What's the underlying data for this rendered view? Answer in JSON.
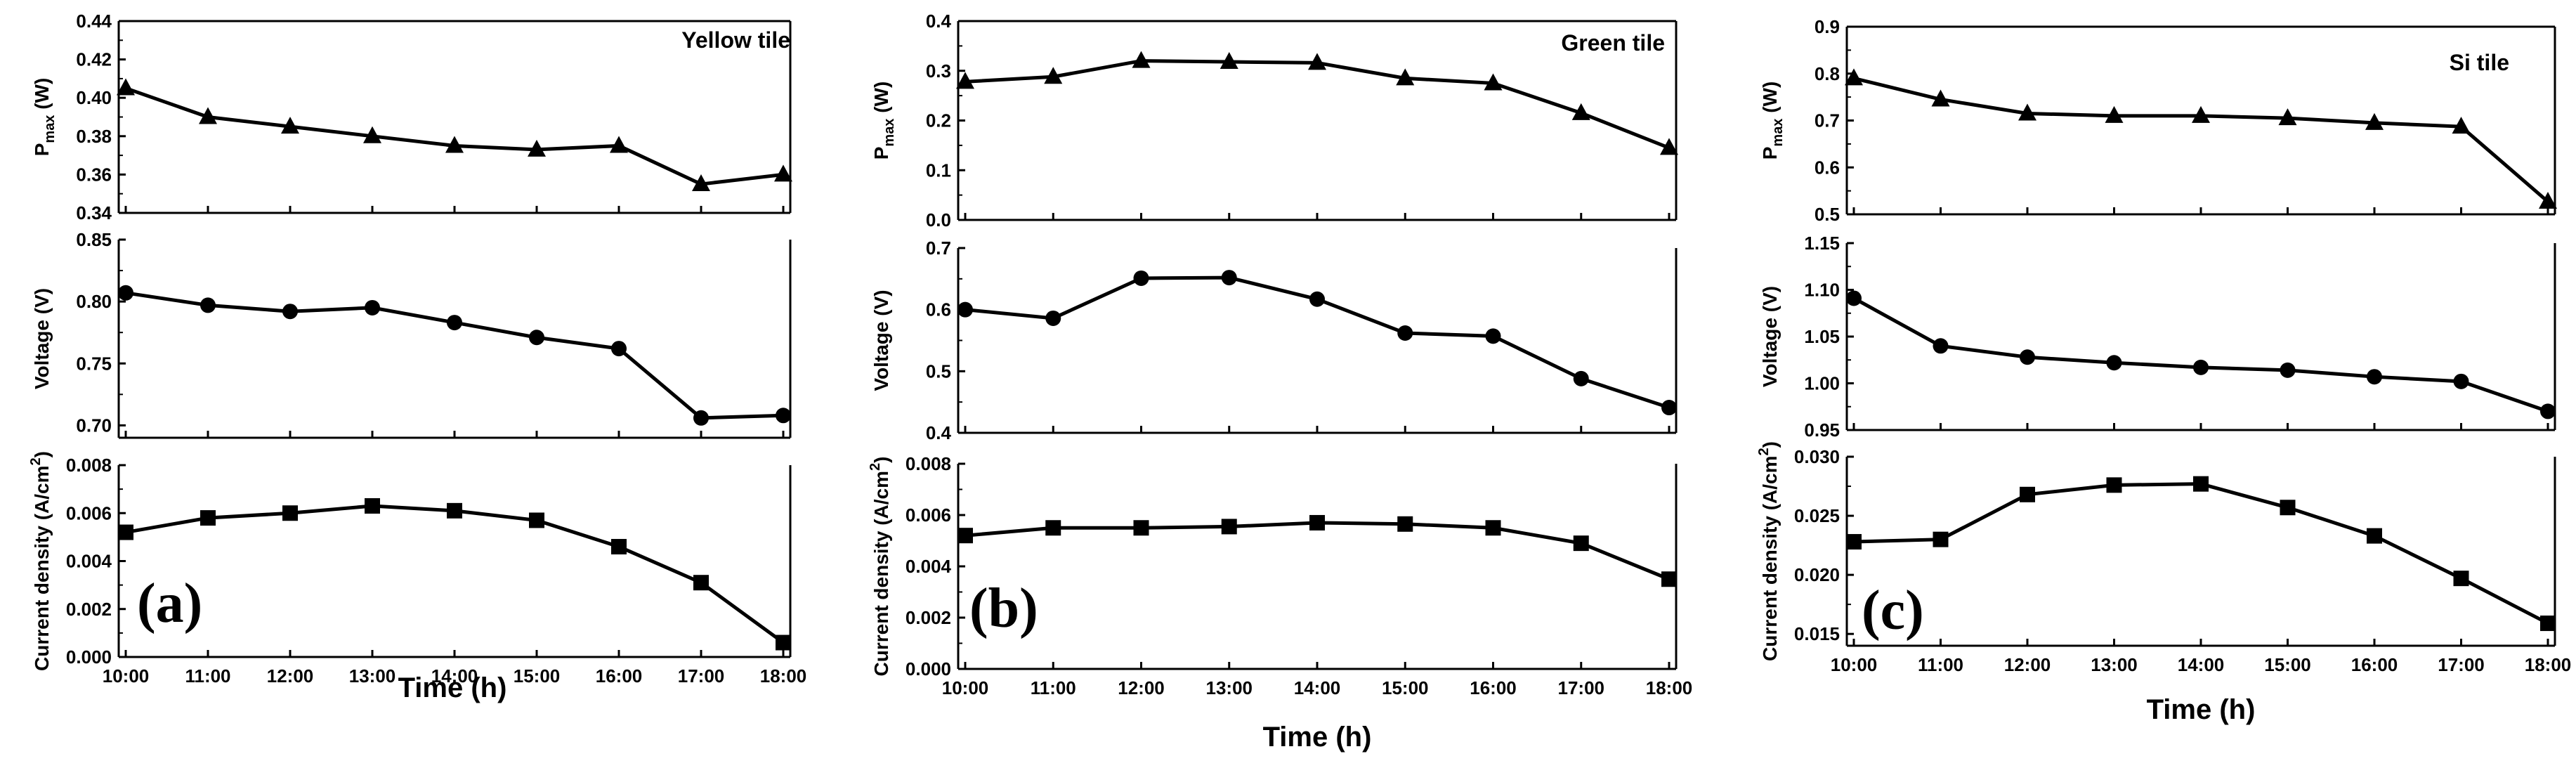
{
  "figure": {
    "x_axis_label": "Time (h)",
    "x_tick_labels": [
      "10:00",
      "11:00",
      "12:00",
      "13:00",
      "14:00",
      "15:00",
      "16:00",
      "17:00",
      "18:00"
    ]
  },
  "chart_data": [
    {
      "panel": "(a)",
      "type": "line",
      "title": "Yellow tile",
      "x": [
        "10:00",
        "11:00",
        "12:00",
        "13:00",
        "14:00",
        "15:00",
        "16:00",
        "17:00",
        "18:00"
      ],
      "xlabel": "Time (h)",
      "subplots": [
        {
          "ylabel_main": "P",
          "ylabel_sub": "max",
          "ylabel_unit": " (W)",
          "marker": "triangle",
          "ylim": [
            0.34,
            0.44
          ],
          "yticks": [
            0.34,
            0.36,
            0.38,
            0.4,
            0.42,
            0.44
          ],
          "ytick_labels": [
            "0.34",
            "0.36",
            "0.38",
            "0.40",
            "0.42",
            "0.44"
          ],
          "values": [
            0.405,
            0.39,
            0.385,
            0.38,
            0.375,
            0.373,
            0.375,
            0.355,
            0.36
          ]
        },
        {
          "ylabel_main": "Voltage (V)",
          "marker": "circle",
          "ylim": [
            0.69,
            0.85
          ],
          "yticks": [
            0.7,
            0.75,
            0.8,
            0.85
          ],
          "ytick_labels": [
            "0.70",
            "0.75",
            "0.80",
            "0.85"
          ],
          "values": [
            0.807,
            0.797,
            0.792,
            0.795,
            0.783,
            0.771,
            0.762,
            0.706,
            0.708
          ]
        },
        {
          "ylabel_main": "Current density (A/cm",
          "ylabel_sup": "2",
          "ylabel_end": ")",
          "marker": "square",
          "ylim": [
            0.0,
            0.008
          ],
          "yticks": [
            0.0,
            0.002,
            0.004,
            0.006,
            0.008
          ],
          "ytick_labels": [
            "0.000",
            "0.002",
            "0.004",
            "0.006",
            "0.008"
          ],
          "values": [
            0.0052,
            0.0058,
            0.006,
            0.0063,
            0.0061,
            0.0057,
            0.0046,
            0.0031,
            0.0006
          ]
        }
      ]
    },
    {
      "panel": "(b)",
      "type": "line",
      "title": "Green tile",
      "x": [
        "10:00",
        "11:00",
        "12:00",
        "13:00",
        "14:00",
        "15:00",
        "16:00",
        "17:00",
        "18:00"
      ],
      "xlabel": "Time (h)",
      "subplots": [
        {
          "ylabel_main": "P",
          "ylabel_sub": "max",
          "ylabel_unit": " (W)",
          "marker": "triangle",
          "ylim": [
            0.0,
            0.4
          ],
          "yticks": [
            0.0,
            0.1,
            0.2,
            0.3,
            0.4
          ],
          "ytick_labels": [
            "0.0",
            "0.1",
            "0.2",
            "0.3",
            "0.4"
          ],
          "values": [
            0.278,
            0.288,
            0.32,
            0.318,
            0.316,
            0.285,
            0.275,
            0.215,
            0.145
          ]
        },
        {
          "ylabel_main": "Voltage (V)",
          "marker": "circle",
          "ylim": [
            0.4,
            0.7
          ],
          "yticks": [
            0.4,
            0.5,
            0.6,
            0.7
          ],
          "ytick_labels": [
            "0.4",
            "0.5",
            "0.6",
            "0.7"
          ],
          "values": [
            0.6,
            0.586,
            0.651,
            0.652,
            0.617,
            0.562,
            0.557,
            0.488,
            0.441
          ]
        },
        {
          "ylabel_main": "Current density (A/cm",
          "ylabel_sup": "2",
          "ylabel_end": ")",
          "marker": "square",
          "ylim": [
            0.0,
            0.008
          ],
          "yticks": [
            0.0,
            0.002,
            0.004,
            0.006,
            0.008
          ],
          "ytick_labels": [
            "0.000",
            "0.002",
            "0.004",
            "0.006",
            "0.008"
          ],
          "values": [
            0.0052,
            0.0055,
            0.0055,
            0.00555,
            0.0057,
            0.00565,
            0.0055,
            0.0049,
            0.0035
          ]
        }
      ]
    },
    {
      "panel": "(c)",
      "type": "line",
      "title": "Si tile",
      "x": [
        "10:00",
        "11:00",
        "12:00",
        "13:00",
        "14:00",
        "15:00",
        "16:00",
        "17:00",
        "18:00"
      ],
      "xlabel": "Time (h)",
      "subplots": [
        {
          "ylabel_main": "P",
          "ylabel_sub": "max",
          "ylabel_unit": " (W)",
          "marker": "triangle",
          "ylim": [
            0.5,
            0.9
          ],
          "yticks": [
            0.5,
            0.6,
            0.7,
            0.8,
            0.9
          ],
          "ytick_labels": [
            "0.5",
            "0.6",
            "0.7",
            "0.8",
            "0.9"
          ],
          "values": [
            0.79,
            0.745,
            0.715,
            0.71,
            0.71,
            0.705,
            0.695,
            0.687,
            0.527
          ]
        },
        {
          "ylabel_main": "Voltage (V)",
          "marker": "circle",
          "ylim": [
            0.95,
            1.15
          ],
          "yticks": [
            0.95,
            1.0,
            1.05,
            1.1,
            1.15
          ],
          "ytick_labels": [
            "0.95",
            "1.00",
            "1.05",
            "1.10",
            "1.15"
          ],
          "values": [
            1.091,
            1.04,
            1.028,
            1.022,
            1.017,
            1.014,
            1.007,
            1.002,
            0.97
          ]
        },
        {
          "ylabel_main": "Current density (A/cm",
          "ylabel_sup": "2",
          "ylabel_end": ")",
          "marker": "square",
          "ylim": [
            0.014,
            0.03
          ],
          "yticks": [
            0.015,
            0.02,
            0.025,
            0.03
          ],
          "ytick_labels": [
            "0.015",
            "0.020",
            "0.025",
            "0.030"
          ],
          "values": [
            0.0228,
            0.023,
            0.0268,
            0.0276,
            0.0277,
            0.0257,
            0.0233,
            0.0197,
            0.0159
          ]
        }
      ]
    }
  ]
}
